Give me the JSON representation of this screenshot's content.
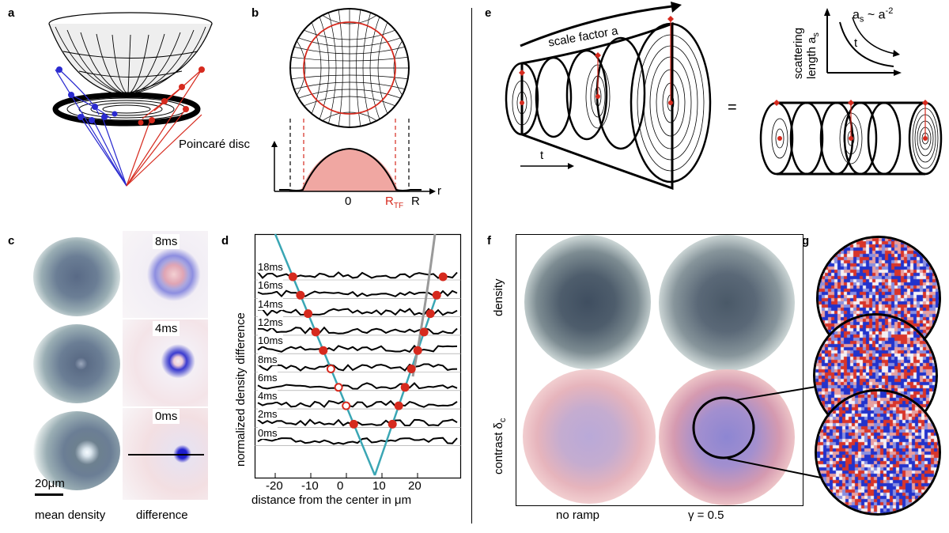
{
  "panels": {
    "a": {
      "label": "a"
    },
    "b": {
      "label": "b",
      "poincare": "Poincaré disc",
      "axis_r": "r",
      "tick_zero": "0",
      "tick_rtf_main": "R",
      "tick_rtf_sub": "TF",
      "tick_r": "R"
    },
    "c": {
      "label": "c",
      "times": [
        "8ms",
        "4ms",
        "0ms"
      ],
      "scalebar": "20μm",
      "xlabel_left": "mean density",
      "xlabel_right": "difference"
    },
    "d": {
      "label": "d",
      "ylabel": "normalized density difference",
      "xlabel": "distance from the center in μm",
      "row_labels": [
        "18ms",
        "16ms",
        "14ms",
        "12ms",
        "10ms",
        "8ms",
        "6ms",
        "4ms",
        "2ms",
        "0ms"
      ],
      "xticks": [
        "-20",
        "-10",
        "0",
        "10",
        "20"
      ]
    },
    "e": {
      "label": "e",
      "scale_factor": "scale factor a",
      "time_arrow": "t",
      "equals": "=",
      "scattering_line1": "scattering",
      "scattering_line2": "length a",
      "scattering_sub": "s",
      "law_main": "a",
      "law_sub": "s",
      "law_rest": "~ a",
      "law_exp": "-2",
      "law_t": "t"
    },
    "f": {
      "label": "f",
      "row_top": "density",
      "row_bottom_main": "contrast δ",
      "row_bottom_sub": "c",
      "col_left": "no ramp",
      "col_right": "γ = 0.5"
    },
    "g": {
      "label": "g"
    }
  },
  "colors": {
    "red": "#d62a1e",
    "blue": "#2a2ad0",
    "teal": "#3aa6b4",
    "pink": "#f0a7a2",
    "gray": "#9a9a9a"
  }
}
